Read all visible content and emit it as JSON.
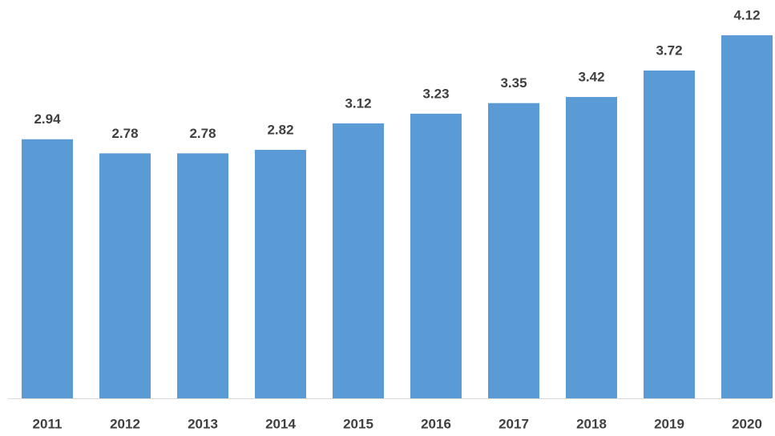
{
  "chart_data": {
    "type": "bar",
    "categories": [
      "2011",
      "2012",
      "2013",
      "2014",
      "2015",
      "2016",
      "2017",
      "2018",
      "2019",
      "2020"
    ],
    "values": [
      2.94,
      2.78,
      2.78,
      2.82,
      3.12,
      3.23,
      3.35,
      3.42,
      3.72,
      4.12
    ],
    "color": "#5b9bd5",
    "data_labels": true
  }
}
